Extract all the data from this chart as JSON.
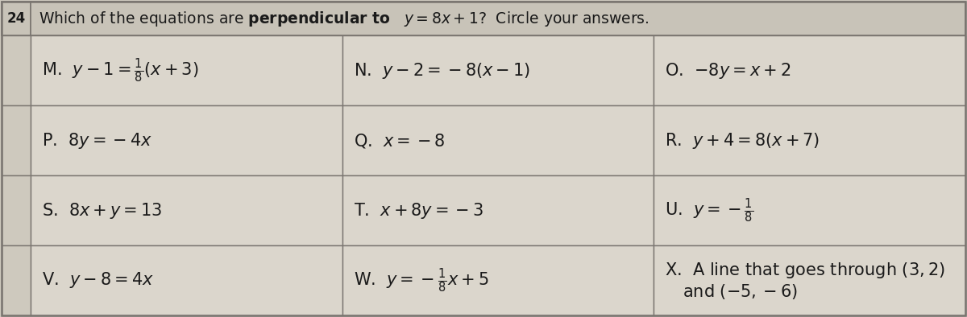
{
  "problem_number": "24",
  "bg_color": "#cec9be",
  "cell_bg": "#dbd6cc",
  "header_bg": "#c8c3b8",
  "border_color": "#7a7570",
  "text_color": "#1a1a1a",
  "cells": [
    [
      "M.  $y-1=\\frac{1}{8}(x+3)$",
      "N.  $y-2=-8(x-1)$",
      "O.  $-8y=x+2$"
    ],
    [
      "P.  $8y=-4x$",
      "Q.  $x=-8$",
      "R.  $y+4=8(x+7)$"
    ],
    [
      "S.  $8x+y=13$",
      "T.  $x+8y=-3$",
      "U.  $y=-\\frac{1}{8}$"
    ],
    [
      "V.  $y-8=4x$",
      "W.  $y=-\\frac{1}{8}x+5$",
      "X.  A line that goes through $(3,2)$\nand $(-5,-6)$"
    ]
  ],
  "font_size": 15,
  "header_font_size": 13.5
}
